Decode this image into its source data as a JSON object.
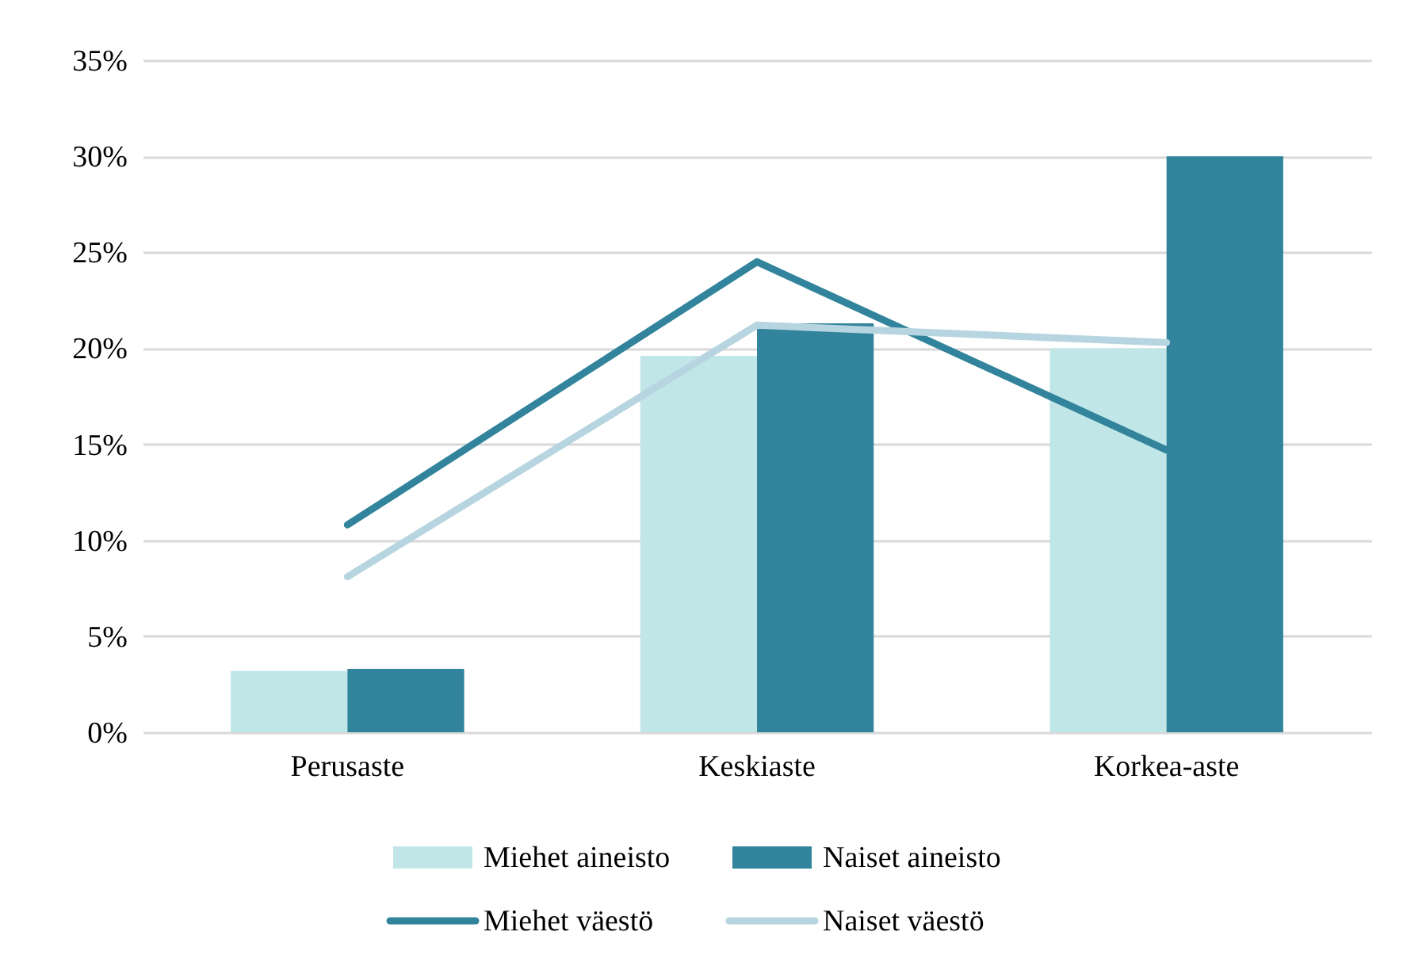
{
  "chart_data": {
    "type": "bar",
    "categories": [
      "Perusaste",
      "Keskiaste",
      "Korkea-aste"
    ],
    "series": [
      {
        "name": "Miehet aineisto",
        "color": "#c0e6e8",
        "values": [
          3.2,
          19.6,
          20.0
        ]
      },
      {
        "name": "Naiset aineisto",
        "color": "#31849b",
        "values": [
          3.3,
          21.3,
          30.0
        ]
      },
      {
        "name": "Miehet väestö",
        "type": "line",
        "color": "#31849b",
        "values": [
          10.8,
          24.5,
          14.7
        ]
      },
      {
        "name": "Naiset väestö",
        "type": "line",
        "color": "#b7d5e0",
        "values": [
          8.1,
          21.2,
          20.3
        ]
      }
    ],
    "ylim": [
      0,
      35
    ],
    "yticks": [
      {
        "value": 0,
        "label": "0%"
      },
      {
        "value": 5,
        "label": "5%"
      },
      {
        "value": 10,
        "label": "10%"
      },
      {
        "value": 15,
        "label": "15%"
      },
      {
        "value": 20,
        "label": "20%"
      },
      {
        "value": 25,
        "label": "25%"
      },
      {
        "value": 30,
        "label": "30%"
      },
      {
        "value": 35,
        "label": "35%"
      }
    ],
    "grid": "y",
    "legend": "bottom",
    "line_style": "solid",
    "marker": "none"
  }
}
